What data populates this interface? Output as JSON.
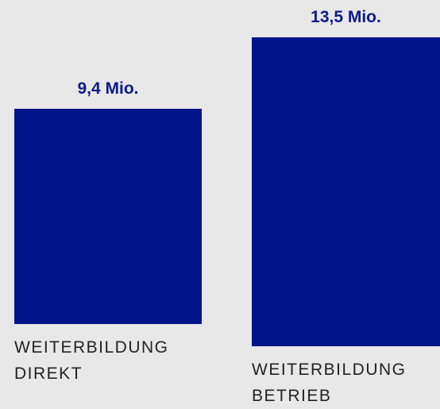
{
  "chart_data": {
    "type": "bar",
    "categories": [
      "WEITERBILDUNG DIREKT",
      "WEITERBILDUNG BETRIEB"
    ],
    "values": [
      9.4,
      13.5
    ],
    "value_labels": [
      "9,4 Mio.",
      "13,5 Mio."
    ],
    "color": "#00148a"
  }
}
